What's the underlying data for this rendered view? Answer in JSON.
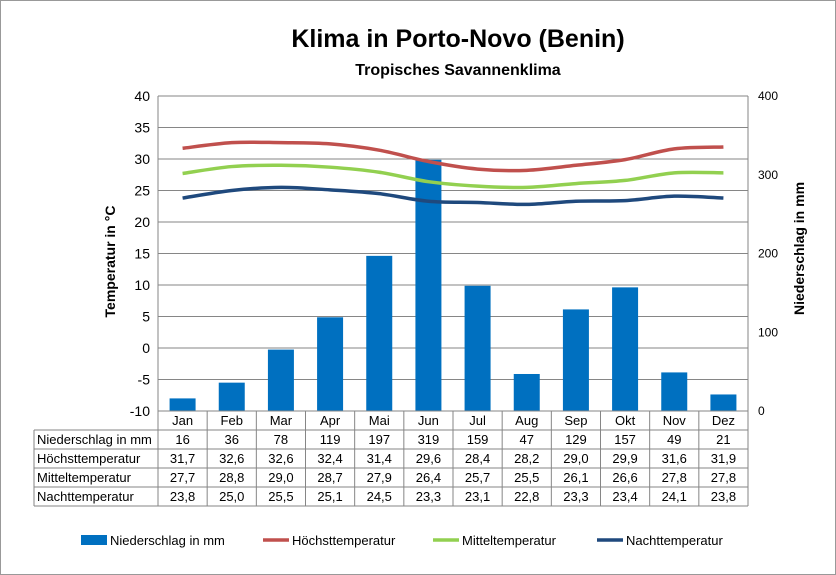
{
  "chart_data": {
    "type": "bar+line",
    "title": "Klima in Porto-Novo (Benin)",
    "subtitle": "Tropisches Savannenklima",
    "ylabel": "Temperatur in °C",
    "y2label": "Niederschlag in mm",
    "ylim": [
      -10,
      40
    ],
    "y2lim": [
      0,
      400
    ],
    "yticks": [
      "40",
      "35",
      "30",
      "25",
      "20",
      "15",
      "10",
      "5",
      "0",
      "-5",
      "-10"
    ],
    "y2ticks": [
      "400",
      "300",
      "200",
      "100",
      "0"
    ],
    "grid": true,
    "legend_position": "bottom",
    "categories": [
      "Jan",
      "Feb",
      "Mar",
      "Apr",
      "Mai",
      "Jun",
      "Jul",
      "Aug",
      "Sep",
      "Okt",
      "Nov",
      "Dez"
    ],
    "series": [
      {
        "name": "Niederschlag in mm",
        "type": "bar",
        "axis": "right",
        "color": "#0070c0",
        "values": [
          16,
          36,
          78,
          119,
          197,
          319,
          159,
          47,
          129,
          157,
          49,
          21
        ],
        "labels": [
          "16",
          "36",
          "78",
          "119",
          "197",
          "319",
          "159",
          "47",
          "129",
          "157",
          "49",
          "21"
        ]
      },
      {
        "name": "Höchsttemperatur",
        "type": "line",
        "axis": "left",
        "color": "#c0504d",
        "values": [
          31.7,
          32.6,
          32.6,
          32.4,
          31.4,
          29.6,
          28.4,
          28.2,
          29.0,
          29.9,
          31.6,
          31.9
        ],
        "labels": [
          "31,7",
          "32,6",
          "32,6",
          "32,4",
          "31,4",
          "29,6",
          "28,4",
          "28,2",
          "29,0",
          "29,9",
          "31,6",
          "31,9"
        ]
      },
      {
        "name": "Mitteltemperatur",
        "type": "line",
        "axis": "left",
        "color": "#92d050",
        "values": [
          27.7,
          28.8,
          29.0,
          28.7,
          27.9,
          26.4,
          25.7,
          25.5,
          26.1,
          26.6,
          27.8,
          27.8
        ],
        "labels": [
          "27,7",
          "28,8",
          "29,0",
          "28,7",
          "27,9",
          "26,4",
          "25,7",
          "25,5",
          "26,1",
          "26,6",
          "27,8",
          "27,8"
        ]
      },
      {
        "name": "Nachttemperatur",
        "type": "line",
        "axis": "left",
        "color": "#1f497d",
        "values": [
          23.8,
          25.0,
          25.5,
          25.1,
          24.5,
          23.3,
          23.1,
          22.8,
          23.3,
          23.4,
          24.1,
          23.8
        ],
        "labels": [
          "23,8",
          "25,0",
          "25,5",
          "25,1",
          "24,5",
          "23,3",
          "23,1",
          "22,8",
          "23,3",
          "23,4",
          "24,1",
          "23,8"
        ]
      }
    ]
  }
}
